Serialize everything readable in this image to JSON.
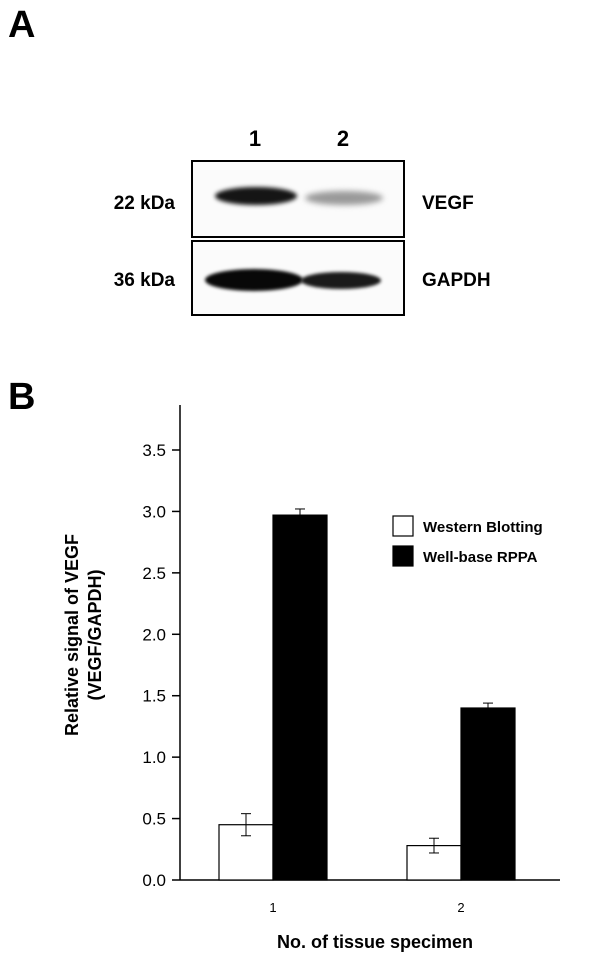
{
  "panel_a": {
    "letter": "A",
    "lanes": [
      "1",
      "2"
    ],
    "rows": [
      {
        "marker": "22 kDa",
        "protein": "VEGF"
      },
      {
        "marker": "36 kDa",
        "protein": "GAPDH"
      }
    ]
  },
  "panel_b": {
    "letter": "B"
  },
  "chart_data": {
    "type": "bar",
    "categories": [
      "1",
      "2"
    ],
    "series": [
      {
        "name": "Western Blotting",
        "values": [
          0.45,
          0.28
        ],
        "errors": [
          0.09,
          0.06
        ],
        "color": "#ffffff"
      },
      {
        "name": "Well-base RPPA",
        "values": [
          2.97,
          1.4
        ],
        "errors": [
          0.05,
          0.04
        ],
        "color": "#000000"
      }
    ],
    "xlabel": "No. of tissue specimen",
    "ylabel_lines": [
      "Relative signal of VEGF",
      "(VEGF/GAPDH)"
    ],
    "ylim": [
      0,
      3.5
    ],
    "yticks": [
      "0.0",
      "0.5",
      "1.0",
      "1.5",
      "2.0",
      "2.5",
      "3.0",
      "3.5"
    ],
    "grid": false,
    "legend_position": "top-right"
  }
}
